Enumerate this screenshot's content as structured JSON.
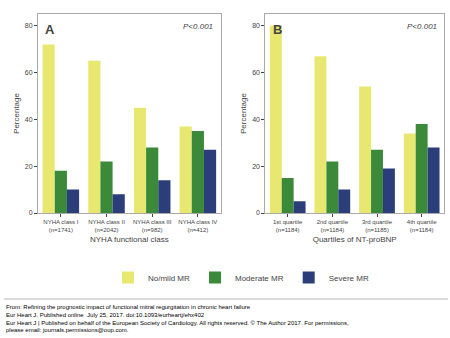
{
  "chart_data": [
    {
      "type": "bar",
      "xlabel": "NYHA functional class",
      "ylabel": "Percentage",
      "annotations": [
        "A",
        "P<0.001"
      ],
      "categories": [
        "NYHA class I\n(n=1741)",
        "NYHA class II\n(n=2042)",
        "NYHA class III\n(n=982)",
        "NYHA class IV\n(n=412)"
      ],
      "series": [
        {
          "name": "No/mild MR",
          "color": "#e8e870",
          "values": [
            72,
            65,
            45,
            37
          ]
        },
        {
          "name": "Moderate MR",
          "color": "#3a8a3a",
          "values": [
            18,
            22,
            28,
            35
          ]
        },
        {
          "name": "Severe MR",
          "color": "#2c3e7a",
          "values": [
            10,
            8,
            14,
            27
          ]
        }
      ],
      "ylim": [
        0,
        85
      ],
      "yticks": [
        0,
        20,
        40,
        60,
        80
      ],
      "grid": false,
      "legend": "bottom"
    },
    {
      "type": "bar",
      "xlabel": "Quartiles of NT-proBNP",
      "ylabel": "Percentage",
      "annotations": [
        "B",
        "P<0.001"
      ],
      "categories": [
        "1st quartile\n(n=1184)",
        "2nd quartile\n(n=1184)",
        "3rd quartile\n(n=1185)",
        "4th quartile\n(n=1184)"
      ],
      "series": [
        {
          "name": "No/mild MR",
          "color": "#e8e870",
          "values": [
            80,
            67,
            54,
            34
          ]
        },
        {
          "name": "Moderate MR",
          "color": "#3a8a3a",
          "values": [
            15,
            22,
            27,
            38
          ]
        },
        {
          "name": "Severe MR",
          "color": "#2c3e7a",
          "values": [
            5,
            10,
            19,
            28
          ]
        }
      ],
      "ylim": [
        0,
        85
      ],
      "yticks": [
        0,
        20,
        40,
        60,
        80
      ],
      "grid": false,
      "legend": "bottom"
    }
  ],
  "annotations": [
    "From: Refining the prognostic impact of functional mitral regurgitation in chronic heart failure",
    "Eur Heart J. Published online  July 25, 2017. doi:10.1093/eurheartj/ehx402",
    "Eur Heart J | Published on behalf of the European Society of Cardiology. All rights reserved. © The Author 2017. For permissions,",
    "please email: journals.permissions@oup.com."
  ]
}
